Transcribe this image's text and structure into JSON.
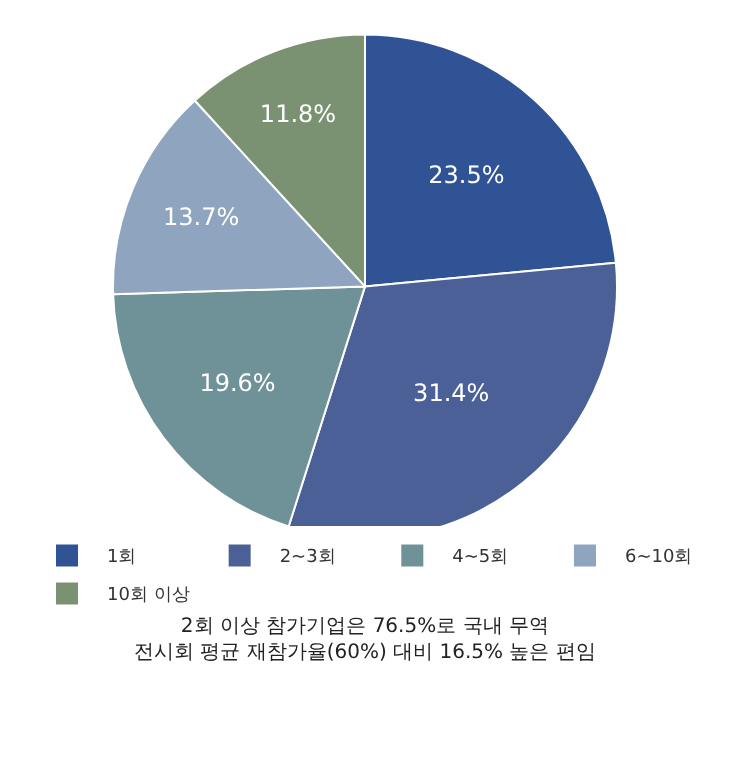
{
  "chart_data": {
    "type": "pie",
    "categories": [
      "1회",
      "2~3회",
      "4~5회",
      "6~10회",
      "10회 이상"
    ],
    "values": [
      23.5,
      31.4,
      19.6,
      13.7,
      11.8
    ],
    "value_labels": [
      "23.5%",
      "31.4%",
      "19.6%",
      "13.7%",
      "11.8%"
    ],
    "colors": [
      "#2f5394",
      "#4b6097",
      "#6e9297",
      "#8fa5bf",
      "#7b9272"
    ],
    "legend": "bottom",
    "annotations": [
      "2회 이상 참가기업은 76.5%로 국내 무역\n전시회 평균 재참가율(60%) 대비 16.5% 높은 편임"
    ]
  }
}
